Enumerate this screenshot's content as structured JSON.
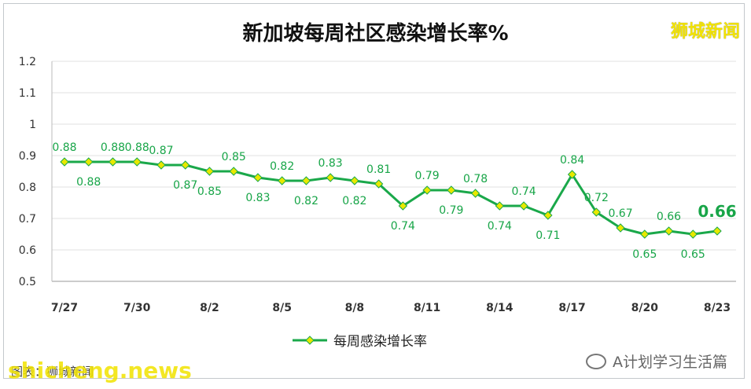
{
  "header": {
    "title": "新加坡每周社区感染增长率%",
    "brand": "狮城新闻"
  },
  "chart_data": {
    "type": "line",
    "title": "新加坡每周社区感染增长率%",
    "ylim": [
      0.5,
      1.2
    ],
    "y_ticks": [
      "0.5",
      "0.6",
      "0.7",
      "0.8",
      "0.9",
      "1",
      "1.1",
      "1.2"
    ],
    "grid": true,
    "x_tick_labels": [
      "7/27",
      "7/30",
      "8/2",
      "8/5",
      "8/8",
      "8/11",
      "8/14",
      "8/17",
      "8/20",
      "8/23"
    ],
    "series": [
      {
        "name": "每周感染增长率",
        "values": [
          0.88,
          0.88,
          0.88,
          0.88,
          0.87,
          0.87,
          0.85,
          0.85,
          0.83,
          0.82,
          0.82,
          0.83,
          0.82,
          0.81,
          0.74,
          0.79,
          0.79,
          0.78,
          0.74,
          0.74,
          0.71,
          0.84,
          0.72,
          0.67,
          0.65,
          0.66,
          0.65,
          0.66
        ],
        "color": "#1aa84a",
        "marker_color": "#e8e800"
      }
    ],
    "data_labels": [
      "0.88",
      "0.88",
      "0.88",
      "0.88",
      "0.87",
      "0.87",
      "0.85",
      "0.85",
      "0.83",
      "0.82",
      "0.82",
      "0.83",
      "0.82",
      "0.81",
      "0.74",
      "0.79",
      "0.79",
      "0.78",
      "0.74",
      "0.74",
      "0.71",
      "0.84",
      "0.72",
      "0.67",
      "0.65",
      "0.66",
      "0.65",
      "0.66"
    ],
    "legend_position": "bottom"
  },
  "legend": {
    "label": "每周感染增长率"
  },
  "footer": {
    "source": "图表：狮城新闻",
    "watermark": "shicheng.news",
    "wechat": "A计划学习生活篇"
  }
}
